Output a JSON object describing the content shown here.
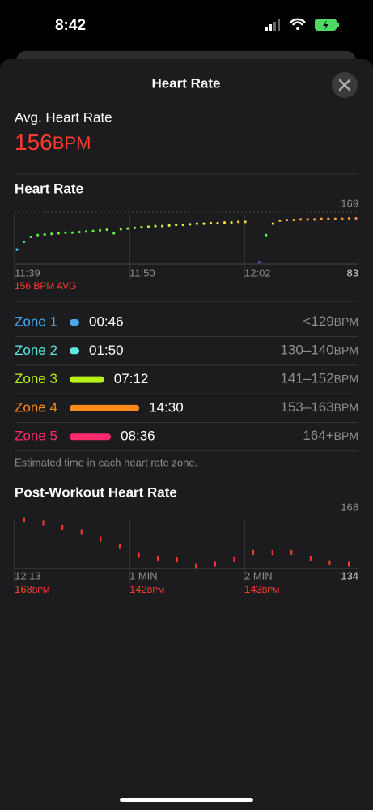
{
  "status_bar": {
    "time": "8:42"
  },
  "header": {
    "title": "Heart Rate"
  },
  "summary": {
    "label": "Avg. Heart Rate",
    "value": "156",
    "unit": "BPM"
  },
  "heart_rate_chart": {
    "title": "Heart Rate",
    "ymax": 169,
    "ymin": 83,
    "xlabels": [
      "11:39",
      "11:50",
      "12:02"
    ],
    "avg_label": "156 BPM AVG",
    "values": [
      107,
      120,
      128,
      131,
      132,
      133,
      134,
      135,
      135,
      136,
      137,
      138,
      139,
      140,
      134,
      141,
      142,
      143,
      144,
      145,
      146,
      146,
      147,
      148,
      148,
      149,
      150,
      150,
      151,
      151,
      152,
      152,
      153,
      153,
      null,
      86,
      131,
      150,
      155,
      156,
      156,
      157,
      157,
      157,
      158,
      158,
      158,
      158,
      159,
      159
    ]
  },
  "zones": {
    "rows": [
      {
        "name": "Zone 1",
        "time": "00:46",
        "range": "<129",
        "unit": "BPM",
        "color": "#4aa8f0"
      },
      {
        "name": "Zone 2",
        "time": "01:50",
        "range": "130–140",
        "unit": "BPM",
        "color": "#5ee8e0"
      },
      {
        "name": "Zone 3",
        "time": "07:12",
        "range": "141–152",
        "unit": "BPM",
        "color": "#b8f01a"
      },
      {
        "name": "Zone 4",
        "time": "14:30",
        "range": "153–163",
        "unit": "BPM",
        "color": "#ff8c1a"
      },
      {
        "name": "Zone 5",
        "time": "08:36",
        "range": "164+",
        "unit": "BPM",
        "color": "#ff2a6d"
      }
    ],
    "note": "Estimated time in each heart rate zone."
  },
  "post_workout": {
    "title": "Post-Workout Heart Rate",
    "ymax": 168,
    "ymin": 134,
    "xlabels": [
      "12:13",
      "1 MIN",
      "2 MIN"
    ],
    "readings": [
      {
        "value": "168",
        "unit": "BPM"
      },
      {
        "value": "142",
        "unit": "BPM"
      },
      {
        "value": "143",
        "unit": "BPM"
      }
    ],
    "values": [
      167,
      165,
      162,
      159,
      154,
      149,
      143,
      141,
      140,
      136,
      137,
      140,
      145,
      145,
      145,
      141,
      138,
      137
    ]
  }
}
